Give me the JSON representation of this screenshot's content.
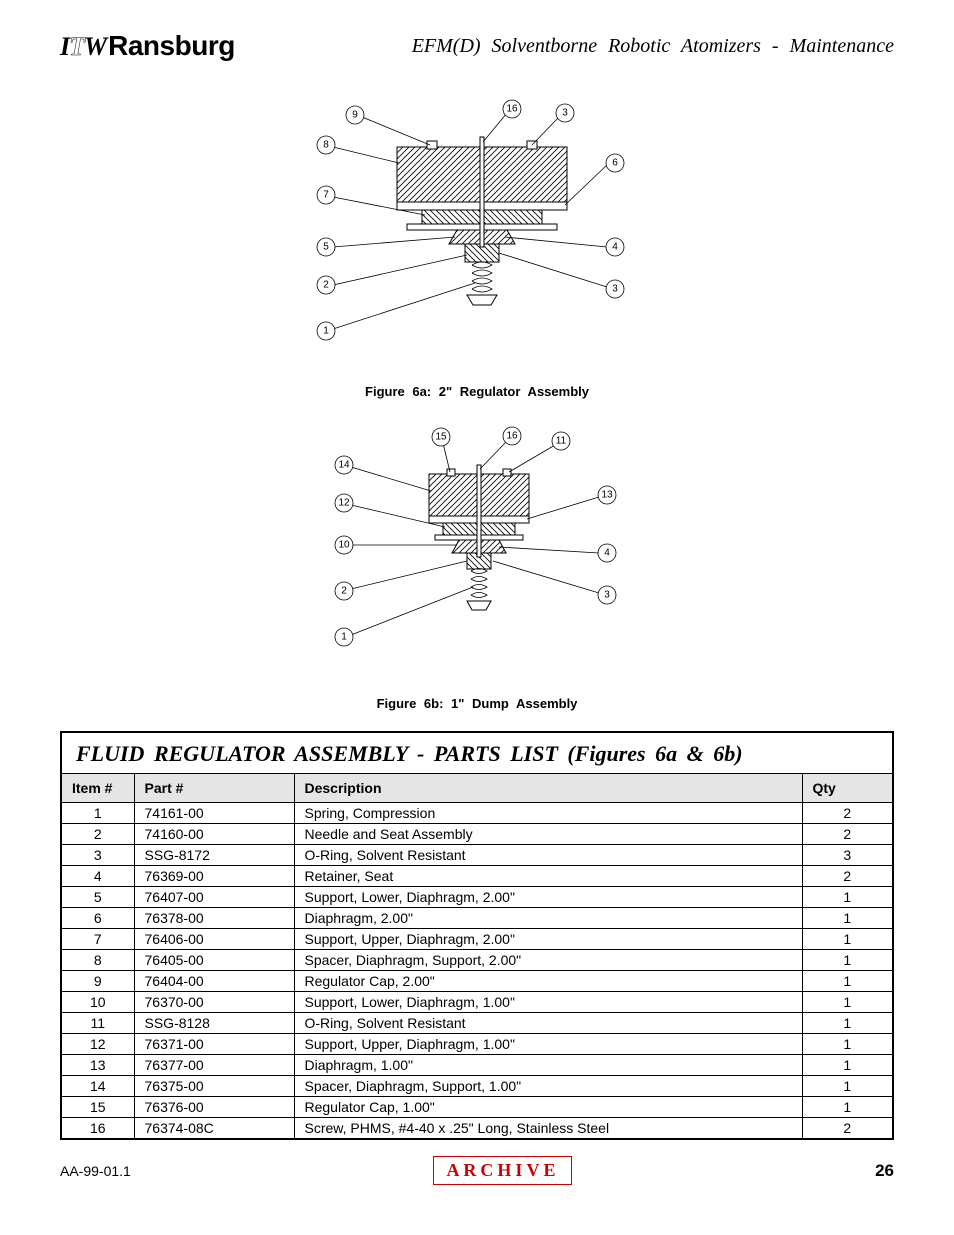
{
  "header": {
    "logo_itw": "ITW",
    "logo_ransburg": "Ransburg",
    "doc_title": "EFM(D) Solventborne Robotic Atomizers - Maintenance"
  },
  "figure_a": {
    "caption": "Figure 6a:  2\" Regulator Assembly",
    "callouts_left": [
      {
        "n": "8"
      },
      {
        "n": "7"
      },
      {
        "n": "5"
      },
      {
        "n": "2"
      },
      {
        "n": "1"
      }
    ],
    "callouts_top": [
      {
        "n": "9"
      },
      {
        "n": "16"
      },
      {
        "n": "3"
      }
    ],
    "callouts_right": [
      {
        "n": "6"
      },
      {
        "n": "4"
      },
      {
        "n": "3"
      }
    ]
  },
  "figure_b": {
    "caption": "Figure 6b:  1\" Dump Assembly",
    "callouts_left": [
      {
        "n": "14"
      },
      {
        "n": "12"
      },
      {
        "n": "10"
      },
      {
        "n": "2"
      },
      {
        "n": "1"
      }
    ],
    "callouts_top": [
      {
        "n": "15"
      },
      {
        "n": "16"
      },
      {
        "n": "11"
      }
    ],
    "callouts_right": [
      {
        "n": "13"
      },
      {
        "n": "4"
      },
      {
        "n": "3"
      }
    ]
  },
  "table": {
    "title": "FLUID REGULATOR ASSEMBLY - PARTS LIST (Figures 6a & 6b)",
    "columns": [
      "Item #",
      "Part #",
      "Description",
      "Qty"
    ],
    "rows": [
      [
        "1",
        "74161-00",
        "Spring, Compression",
        "2"
      ],
      [
        "2",
        "74160-00",
        "Needle and Seat Assembly",
        "2"
      ],
      [
        "3",
        "SSG-8172",
        "O-Ring, Solvent Resistant",
        "3"
      ],
      [
        "4",
        "76369-00",
        "Retainer, Seat",
        "2"
      ],
      [
        "5",
        "76407-00",
        "Support, Lower, Diaphragm, 2.00\"",
        "1"
      ],
      [
        "6",
        "76378-00",
        "Diaphragm, 2.00\"",
        "1"
      ],
      [
        "7",
        "76406-00",
        "Support, Upper, Diaphragm, 2.00\"",
        "1"
      ],
      [
        "8",
        "76405-00",
        "Spacer, Diaphragm, Support, 2.00\"",
        "1"
      ],
      [
        "9",
        "76404-00",
        "Regulator Cap, 2.00\"",
        "1"
      ],
      [
        "10",
        "76370-00",
        "Support, Lower, Diaphragm, 1.00\"",
        "1"
      ],
      [
        "11",
        "SSG-8128",
        "O-Ring, Solvent Resistant",
        "1"
      ],
      [
        "12",
        "76371-00",
        "Support, Upper, Diaphragm, 1.00\"",
        "1"
      ],
      [
        "13",
        "76377-00",
        "Diaphragm, 1.00\"",
        "1"
      ],
      [
        "14",
        "76375-00",
        "Spacer, Diaphragm, Support, 1.00\"",
        "1"
      ],
      [
        "15",
        "76376-00",
        "Regulator Cap, 1.00\"",
        "1"
      ],
      [
        "16",
        "76374-08C",
        "Screw, PHMS, #4-40 x .25\" Long, Stainless Steel",
        "2"
      ]
    ]
  },
  "footer": {
    "doc_id": "AA-99-01.1",
    "stamp": "ARCHIVE",
    "page": "26"
  }
}
